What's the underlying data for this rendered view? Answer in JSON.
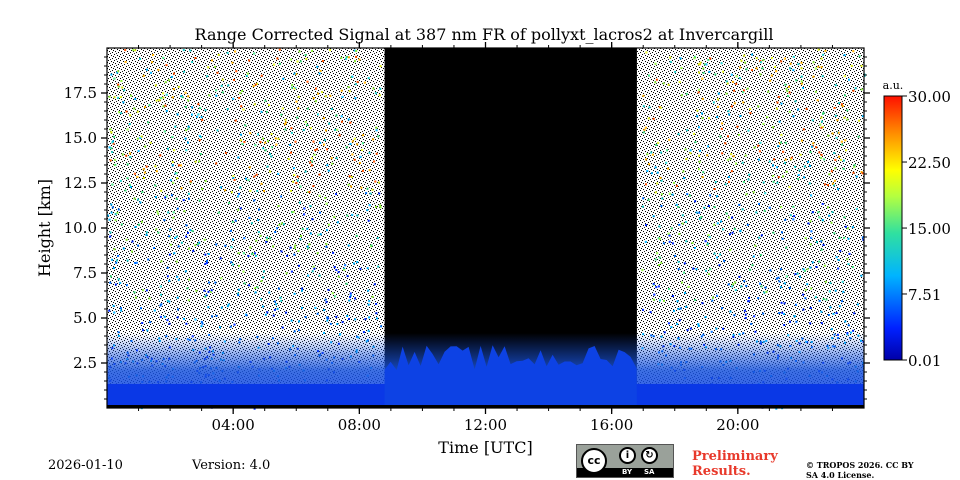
{
  "chart_data": {
    "type": "heatmap",
    "title": "Range Corrected Signal at 387 nm FR of pollyxt_lacros2 at Invercargill",
    "xlabel": "Time [UTC]",
    "ylabel": "Height [km]",
    "xlim": [
      0,
      24
    ],
    "ylim": [
      0,
      20
    ],
    "x_ticks": [
      {
        "value": 4,
        "label": "04:00"
      },
      {
        "value": 8,
        "label": "08:00"
      },
      {
        "value": 12,
        "label": "12:00"
      },
      {
        "value": 16,
        "label": "16:00"
      },
      {
        "value": 20,
        "label": "20:00"
      }
    ],
    "y_ticks": [
      {
        "value": 2.5,
        "label": "2.5"
      },
      {
        "value": 5.0,
        "label": "5.0"
      },
      {
        "value": 7.5,
        "label": "7.5"
      },
      {
        "value": 10.0,
        "label": "10.0"
      },
      {
        "value": 12.5,
        "label": "12.5"
      },
      {
        "value": 15.0,
        "label": "15.0"
      },
      {
        "value": 17.5,
        "label": "17.5"
      }
    ],
    "colorbar": {
      "unit_label": "a.u.",
      "range": [
        0.01,
        30.0
      ],
      "colormap": "jet",
      "ticks": [
        {
          "value": 0.01,
          "label": "0.01"
        },
        {
          "value": 7.51,
          "label": "7.51"
        },
        {
          "value": 15.0,
          "label": "15.00"
        },
        {
          "value": 22.5,
          "label": "22.50"
        },
        {
          "value": 30.0,
          "label": "30.00"
        }
      ]
    },
    "daytime_no_signal_hours": [
      8.8,
      16.8
    ],
    "boundary_layer_top_km": 2.5
  },
  "footer": {
    "date": "2026-01-10",
    "version": "Version: 4.0",
    "license_badge": {
      "cc": "cc",
      "by": "BY",
      "sa": "SA"
    },
    "preliminary": "Preliminary Results.",
    "copyright": "© TROPOS 2026. CC BY SA 4.0 License."
  },
  "colors": {
    "background": "#ffffff",
    "no_data": "#000000",
    "white_noise": "#ffffff",
    "prelim_text": "#e8392b"
  }
}
